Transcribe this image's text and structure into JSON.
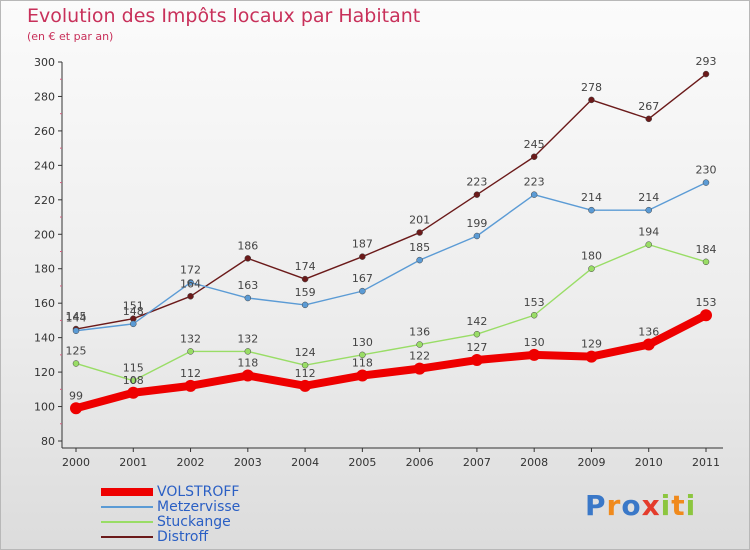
{
  "title": "Evolution des Impôts locaux par Habitant",
  "subtitle": "(en € et par an)",
  "logo": "Proxiti",
  "chart_data": {
    "type": "line",
    "x": [
      "2000",
      "2001",
      "2002",
      "2003",
      "2004",
      "2005",
      "2006",
      "2007",
      "2008",
      "2009",
      "2010",
      "2011"
    ],
    "ylim": [
      80,
      300
    ],
    "yticks": [
      80,
      100,
      120,
      140,
      160,
      180,
      200,
      220,
      240,
      260,
      280,
      300
    ],
    "grid": false,
    "legend_position": "bottom-left",
    "series": [
      {
        "name": "VOLSTROFF",
        "color": "#ee0000",
        "values": [
          99,
          108,
          112,
          118,
          112,
          118,
          122,
          127,
          130,
          129,
          136,
          153
        ]
      },
      {
        "name": "Metzervisse",
        "color": "#5b9bd5",
        "values": [
          144,
          148,
          172,
          163,
          159,
          167,
          185,
          199,
          223,
          214,
          214,
          230
        ]
      },
      {
        "name": "Stuckange",
        "color": "#99dd66",
        "values": [
          125,
          115,
          132,
          132,
          124,
          130,
          136,
          142,
          153,
          180,
          194,
          184
        ]
      },
      {
        "name": "Distroff",
        "color": "#6b1a1a",
        "values": [
          145,
          151,
          164,
          186,
          174,
          187,
          201,
          223,
          245,
          278,
          267,
          293
        ]
      }
    ]
  }
}
